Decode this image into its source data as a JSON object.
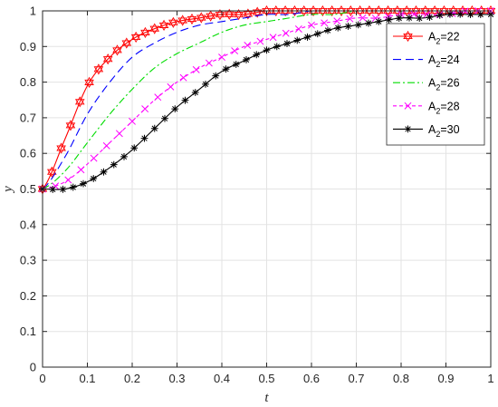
{
  "chart_data": {
    "type": "line",
    "title": "",
    "xlabel": "t",
    "ylabel": "y",
    "xlim": [
      0,
      1
    ],
    "ylim": [
      0,
      1
    ],
    "grid": true,
    "legend_position": "top-right",
    "x_ticks": [
      "0",
      "0.1",
      "0.2",
      "0.3",
      "0.4",
      "0.5",
      "0.6",
      "0.7",
      "0.8",
      "0.9",
      "1"
    ],
    "y_ticks": [
      "0",
      "0.1",
      "0.2",
      "0.3",
      "0.4",
      "0.5",
      "0.6",
      "0.7",
      "0.8",
      "0.9",
      "1"
    ],
    "x": [
      0,
      0.05,
      0.1,
      0.15,
      0.2,
      0.25,
      0.3,
      0.35,
      0.4,
      0.45,
      0.5,
      0.55,
      0.6,
      0.65,
      0.7,
      0.75,
      0.8,
      0.85,
      0.9,
      0.95,
      1
    ],
    "series": [
      {
        "name": "A2=22",
        "name_base": "A",
        "name_sub": "2",
        "name_rest": "=22",
        "color": "#ff0000",
        "dash": "",
        "marker": "hexagram",
        "values": [
          0.5,
          0.64,
          0.79,
          0.87,
          0.92,
          0.95,
          0.97,
          0.98,
          0.99,
          0.99,
          1.0,
          1.0,
          1.0,
          1.0,
          1.0,
          1.0,
          1.0,
          1.0,
          1.0,
          1.0,
          1.0
        ]
      },
      {
        "name": "A2=24",
        "name_base": "A",
        "name_sub": "2",
        "name_rest": "=24",
        "color": "#0000ff",
        "dash": "9,5",
        "marker": "none",
        "values": [
          0.5,
          0.59,
          0.71,
          0.8,
          0.87,
          0.91,
          0.94,
          0.96,
          0.97,
          0.98,
          0.99,
          0.99,
          1.0,
          1.0,
          1.0,
          1.0,
          1.0,
          1.0,
          1.0,
          1.0,
          1.0
        ]
      },
      {
        "name": "A2=26",
        "name_base": "A",
        "name_sub": "2",
        "name_rest": "=26",
        "color": "#00dd00",
        "dash": "8,3,2,3",
        "marker": "none",
        "values": [
          0.5,
          0.55,
          0.63,
          0.71,
          0.78,
          0.84,
          0.88,
          0.91,
          0.94,
          0.96,
          0.97,
          0.98,
          0.99,
          0.99,
          1.0,
          1.0,
          1.0,
          1.0,
          1.0,
          1.0,
          1.0
        ]
      },
      {
        "name": "A2=28",
        "name_base": "A",
        "name_sub": "2",
        "name_rest": "=28",
        "color": "#ff00ff",
        "dash": "4,3",
        "marker": "x",
        "values": [
          0.5,
          0.52,
          0.57,
          0.63,
          0.69,
          0.75,
          0.8,
          0.84,
          0.87,
          0.9,
          0.92,
          0.94,
          0.96,
          0.97,
          0.98,
          0.98,
          0.99,
          0.99,
          0.99,
          1.0,
          1.0
        ]
      },
      {
        "name": "A2=30",
        "name_base": "A",
        "name_sub": "2",
        "name_rest": "=30",
        "color": "#000000",
        "dash": "",
        "marker": "asterisk",
        "values": [
          0.5,
          0.5,
          0.52,
          0.56,
          0.61,
          0.67,
          0.73,
          0.78,
          0.83,
          0.86,
          0.89,
          0.91,
          0.93,
          0.95,
          0.96,
          0.97,
          0.98,
          0.98,
          0.99,
          0.99,
          0.99
        ]
      }
    ]
  }
}
